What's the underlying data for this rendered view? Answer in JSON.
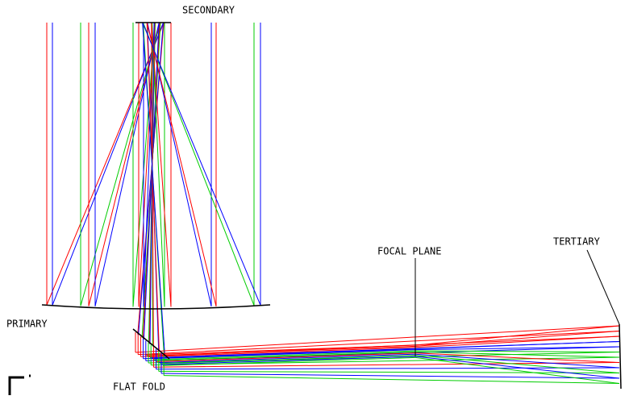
{
  "labels": {
    "secondary": "SECONDARY",
    "primary": "PRIMARY",
    "flat_fold": "FLAT FOLD",
    "focal_plane": "FOCAL PLANE",
    "tertiary": "TERTIARY"
  }
}
